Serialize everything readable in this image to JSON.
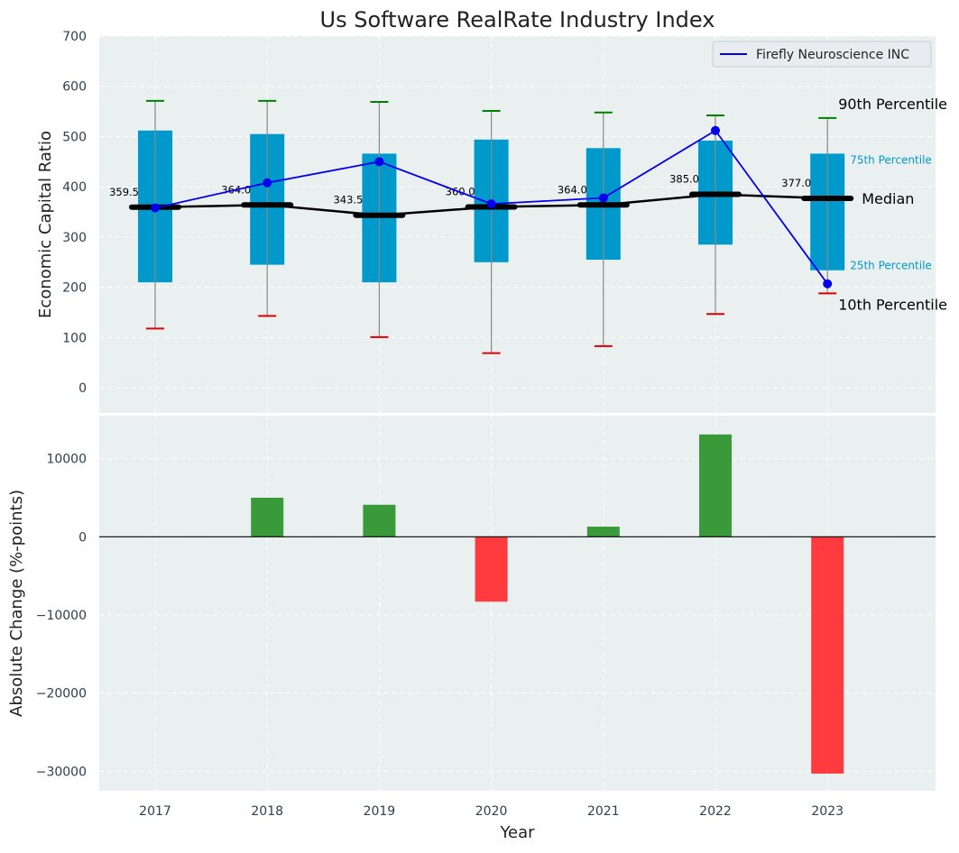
{
  "chart_data": [
    {
      "type": "box",
      "title": "Us Software RealRate Industry Index",
      "xlabel": "",
      "ylabel": "Economic Capital Ratio",
      "ylim": [
        -50,
        700
      ],
      "yticks": [
        0,
        100,
        200,
        300,
        400,
        500,
        600,
        700
      ],
      "categories": [
        "2017",
        "2018",
        "2019",
        "2020",
        "2021",
        "2022",
        "2023"
      ],
      "grid": true,
      "legend_position": "top-right",
      "percentiles": {
        "p10": [
          118,
          143,
          101,
          69,
          83,
          147,
          188
        ],
        "p25": [
          210,
          245,
          210,
          250,
          255,
          285,
          234
        ],
        "median": [
          359.5,
          364.0,
          343.5,
          360.0,
          364.0,
          385.0,
          377.0
        ],
        "p75": [
          512,
          505,
          466,
          494,
          477,
          492,
          466
        ],
        "p90": [
          571,
          571,
          569,
          551,
          548,
          542,
          537
        ]
      },
      "median_labels": [
        "359.5",
        "364.0",
        "343.5",
        "360.0",
        "364.0",
        "385.0",
        "377.0"
      ],
      "series": [
        {
          "name": "Firefly Neuroscience INC",
          "values": [
            358,
            408,
            450,
            366,
            378,
            512,
            207
          ]
        }
      ],
      "annotations": {
        "p90": "90th Percentile",
        "p75": "75th Percentile",
        "median": "Median",
        "p25": "25th Percentile",
        "p10": "10th Percentile"
      },
      "colors": {
        "box": "#0099cc",
        "company_line": "#0000ee",
        "median_line": "#000000",
        "p90_cap": "#008000",
        "p10_cap": "#dd0000",
        "whisker": "#888888",
        "plot_bg": "#eaeff0"
      }
    },
    {
      "type": "bar",
      "xlabel": "Year",
      "ylabel": "Absolute Change (%-points)",
      "ylim": [
        -32500,
        15500
      ],
      "yticks": [
        -30000,
        -20000,
        -10000,
        0,
        10000
      ],
      "ytick_labels": [
        "−30000",
        "−20000",
        "−10000",
        "0",
        "10000"
      ],
      "categories": [
        "2017",
        "2018",
        "2019",
        "2020",
        "2021",
        "2022",
        "2023"
      ],
      "values": [
        0,
        5000,
        4100,
        -8300,
        1300,
        13100,
        -30300
      ],
      "grid": true,
      "colors": {
        "positive": "#3a9a3a",
        "negative": "#ff3b3f",
        "zero_line": "#000000",
        "plot_bg": "#eaeff0"
      }
    }
  ]
}
